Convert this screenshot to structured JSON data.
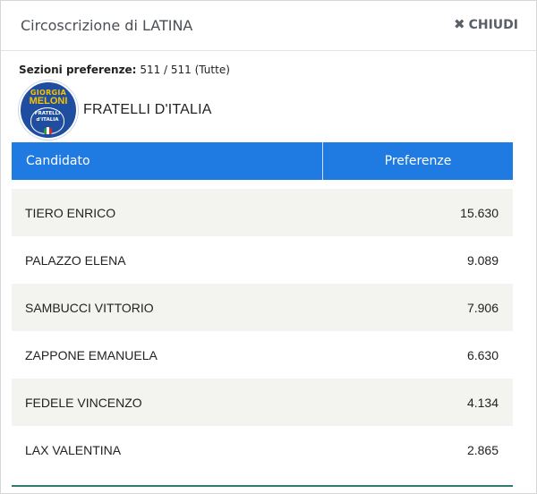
{
  "modal": {
    "title": "Circoscrizione di LATINA",
    "close_label": "CHIUDI",
    "close_icon": "✖"
  },
  "sections": {
    "label": "Sezioni preferenze:",
    "value": "511 / 511 (Tutte)"
  },
  "party": {
    "name": "FRATELLI D'ITALIA",
    "logo": {
      "line1": "GIORGIA",
      "line2": "MELONI",
      "line3": "FRATELLI",
      "line4": "d'ITALIA",
      "bg_color": "#1f4ea1",
      "text_color": "#f7c200"
    }
  },
  "table": {
    "headers": [
      "Candidato",
      "Preferenze"
    ],
    "header_color": "#1f7be2",
    "rows": [
      {
        "name": "TIERO ENRICO",
        "votes": "15.630"
      },
      {
        "name": "PALAZZO ELENA",
        "votes": "9.089"
      },
      {
        "name": "SAMBUCCI VITTORIO",
        "votes": "7.906"
      },
      {
        "name": "ZAPPONE EMANUELA",
        "votes": "6.630"
      },
      {
        "name": "FEDELE VINCENZO",
        "votes": "4.134"
      },
      {
        "name": "LAX VALENTINA",
        "votes": "2.865"
      }
    ]
  }
}
